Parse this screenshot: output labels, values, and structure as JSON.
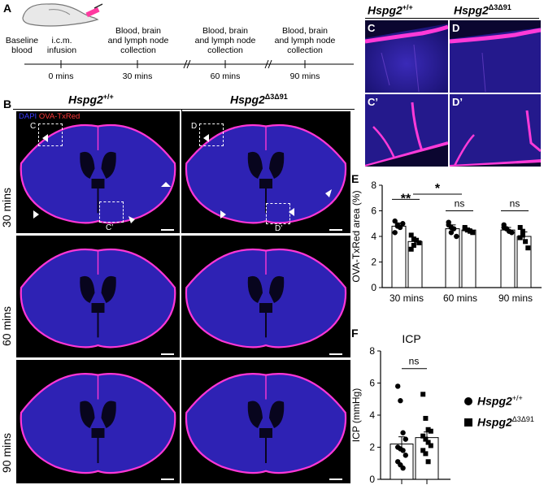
{
  "panel_labels": {
    "A": "A",
    "B": "B",
    "E": "E",
    "F": "F"
  },
  "timeline": {
    "steps": [
      {
        "label": "Baseline\nblood",
        "time": ""
      },
      {
        "label": "i.c.m.\ninfusion",
        "time": "0 mins"
      },
      {
        "label": "Blood, brain\nand lymph node\ncollection",
        "time": "30 mins"
      },
      {
        "label": "Blood, brain\nand lymph node\ncollection",
        "time": "60 mins"
      },
      {
        "label": "Blood, brain\nand lymph node\ncollection",
        "time": "90 mins"
      }
    ]
  },
  "genotypes": {
    "wt": {
      "base": "Hspg2",
      "sup": "+/+"
    },
    "mut": {
      "base": "Hspg2",
      "sup": "Δ3Δ91"
    }
  },
  "stain_legend": {
    "dapi": "DAPI",
    "ova": "OVA-TxRed"
  },
  "row_labels": [
    "30 mins",
    "60 mins",
    "90 mins"
  ],
  "inset_labels": {
    "c": "C",
    "d": "D",
    "c_prime": "C’",
    "d_prime": "D’"
  },
  "colors": {
    "dapi": "#2a2ad8",
    "ova": "#ff2bd6",
    "background": "#000000"
  },
  "chart_data": [
    {
      "panel": "E",
      "type": "bar",
      "ylabel": "OVA-TxRed area (%)",
      "ylim": [
        0,
        8
      ],
      "yticks": [
        0,
        2,
        4,
        6,
        8
      ],
      "categories": [
        "30 mins",
        "60 mins",
        "90 mins"
      ],
      "series": [
        {
          "name": "Hspg2+/+",
          "values": [
            4.8,
            4.6,
            4.5
          ],
          "sem": [
            0.25,
            0.3,
            0.2
          ],
          "points": [
            [
              5.2,
              4.9,
              4.7,
              5.0,
              4.3,
              4.8
            ],
            [
              5.1,
              4.7,
              4.6,
              4.0,
              4.9,
              4.3
            ],
            [
              4.9,
              4.6,
              4.4,
              4.3,
              4.7,
              4.6
            ]
          ]
        },
        {
          "name": "Hspg2Δ3Δ91",
          "values": [
            3.6,
            4.5,
            4.0
          ],
          "sem": [
            0.2,
            0.1,
            0.35
          ],
          "points": [
            [
              4.1,
              3.3,
              3.7,
              3.5,
              3.0,
              3.8
            ],
            [
              4.7,
              4.5,
              4.4,
              4.3,
              4.6,
              4.5
            ],
            [
              4.7,
              4.4,
              3.6,
              3.1,
              3.9,
              4.1
            ]
          ]
        }
      ],
      "annotations": [
        "**",
        "*",
        "ns",
        "ns"
      ]
    },
    {
      "panel": "F",
      "type": "bar",
      "title": "ICP",
      "ylabel": "ICP (mmHg)",
      "ylim": [
        0,
        8
      ],
      "yticks": [
        0,
        2,
        4,
        6,
        8
      ],
      "series": [
        {
          "name": "Hspg2+/+",
          "values": [
            2.2
          ],
          "sem": [
            0.45
          ],
          "points": [
            5.8,
            4.9,
            2.9,
            2.5,
            2.0,
            1.9,
            1.8,
            1.5,
            1.1,
            0.9,
            0.7
          ]
        },
        {
          "name": "Hspg2Δ3Δ91",
          "values": [
            2.6
          ],
          "sem": [
            0.35
          ],
          "points": [
            5.3,
            3.8,
            3.1,
            3.0,
            2.7,
            2.5,
            2.3,
            2.1,
            1.8,
            1.6,
            1.1
          ]
        }
      ],
      "annotations": [
        "ns"
      ],
      "legend": [
        {
          "marker": "circle",
          "base": "Hspg2",
          "sup": "+/+"
        },
        {
          "marker": "square",
          "base": "Hspg2",
          "sup": "Δ3Δ91"
        }
      ]
    }
  ]
}
